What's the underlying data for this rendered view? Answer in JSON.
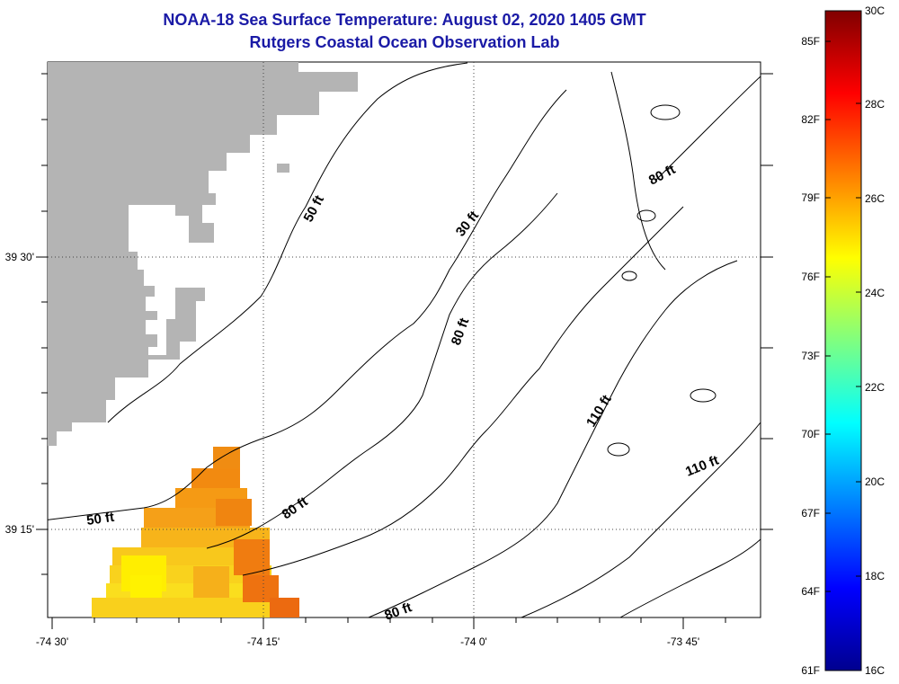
{
  "header": {
    "title_line1": "NOAA-18 Sea Surface Temperature:  August 02, 2020 1405 GMT",
    "title_line2": "Rutgers Coastal Ocean Observation Lab"
  },
  "map": {
    "x_ticks": [
      "-74 30'",
      "-74 15'",
      "-74 0'",
      "-73 45'"
    ],
    "y_ticks": [
      "39 30'",
      "39 15'"
    ],
    "contour_labels": [
      "50 ft",
      "30 ft",
      "80 ft",
      "80 ft",
      "110 ft",
      "110 ft",
      "50 ft",
      "80 ft",
      "80 ft"
    ],
    "land_color": "#b4b4b4"
  },
  "colorbar": {
    "fahrenheit": [
      "85F",
      "82F",
      "79F",
      "76F",
      "73F",
      "70F",
      "67F",
      "64F",
      "61F"
    ],
    "celsius": [
      "30C",
      "28C",
      "26C",
      "24C",
      "22C",
      "20C",
      "18C",
      "16C"
    ],
    "colormap": "jet"
  }
}
